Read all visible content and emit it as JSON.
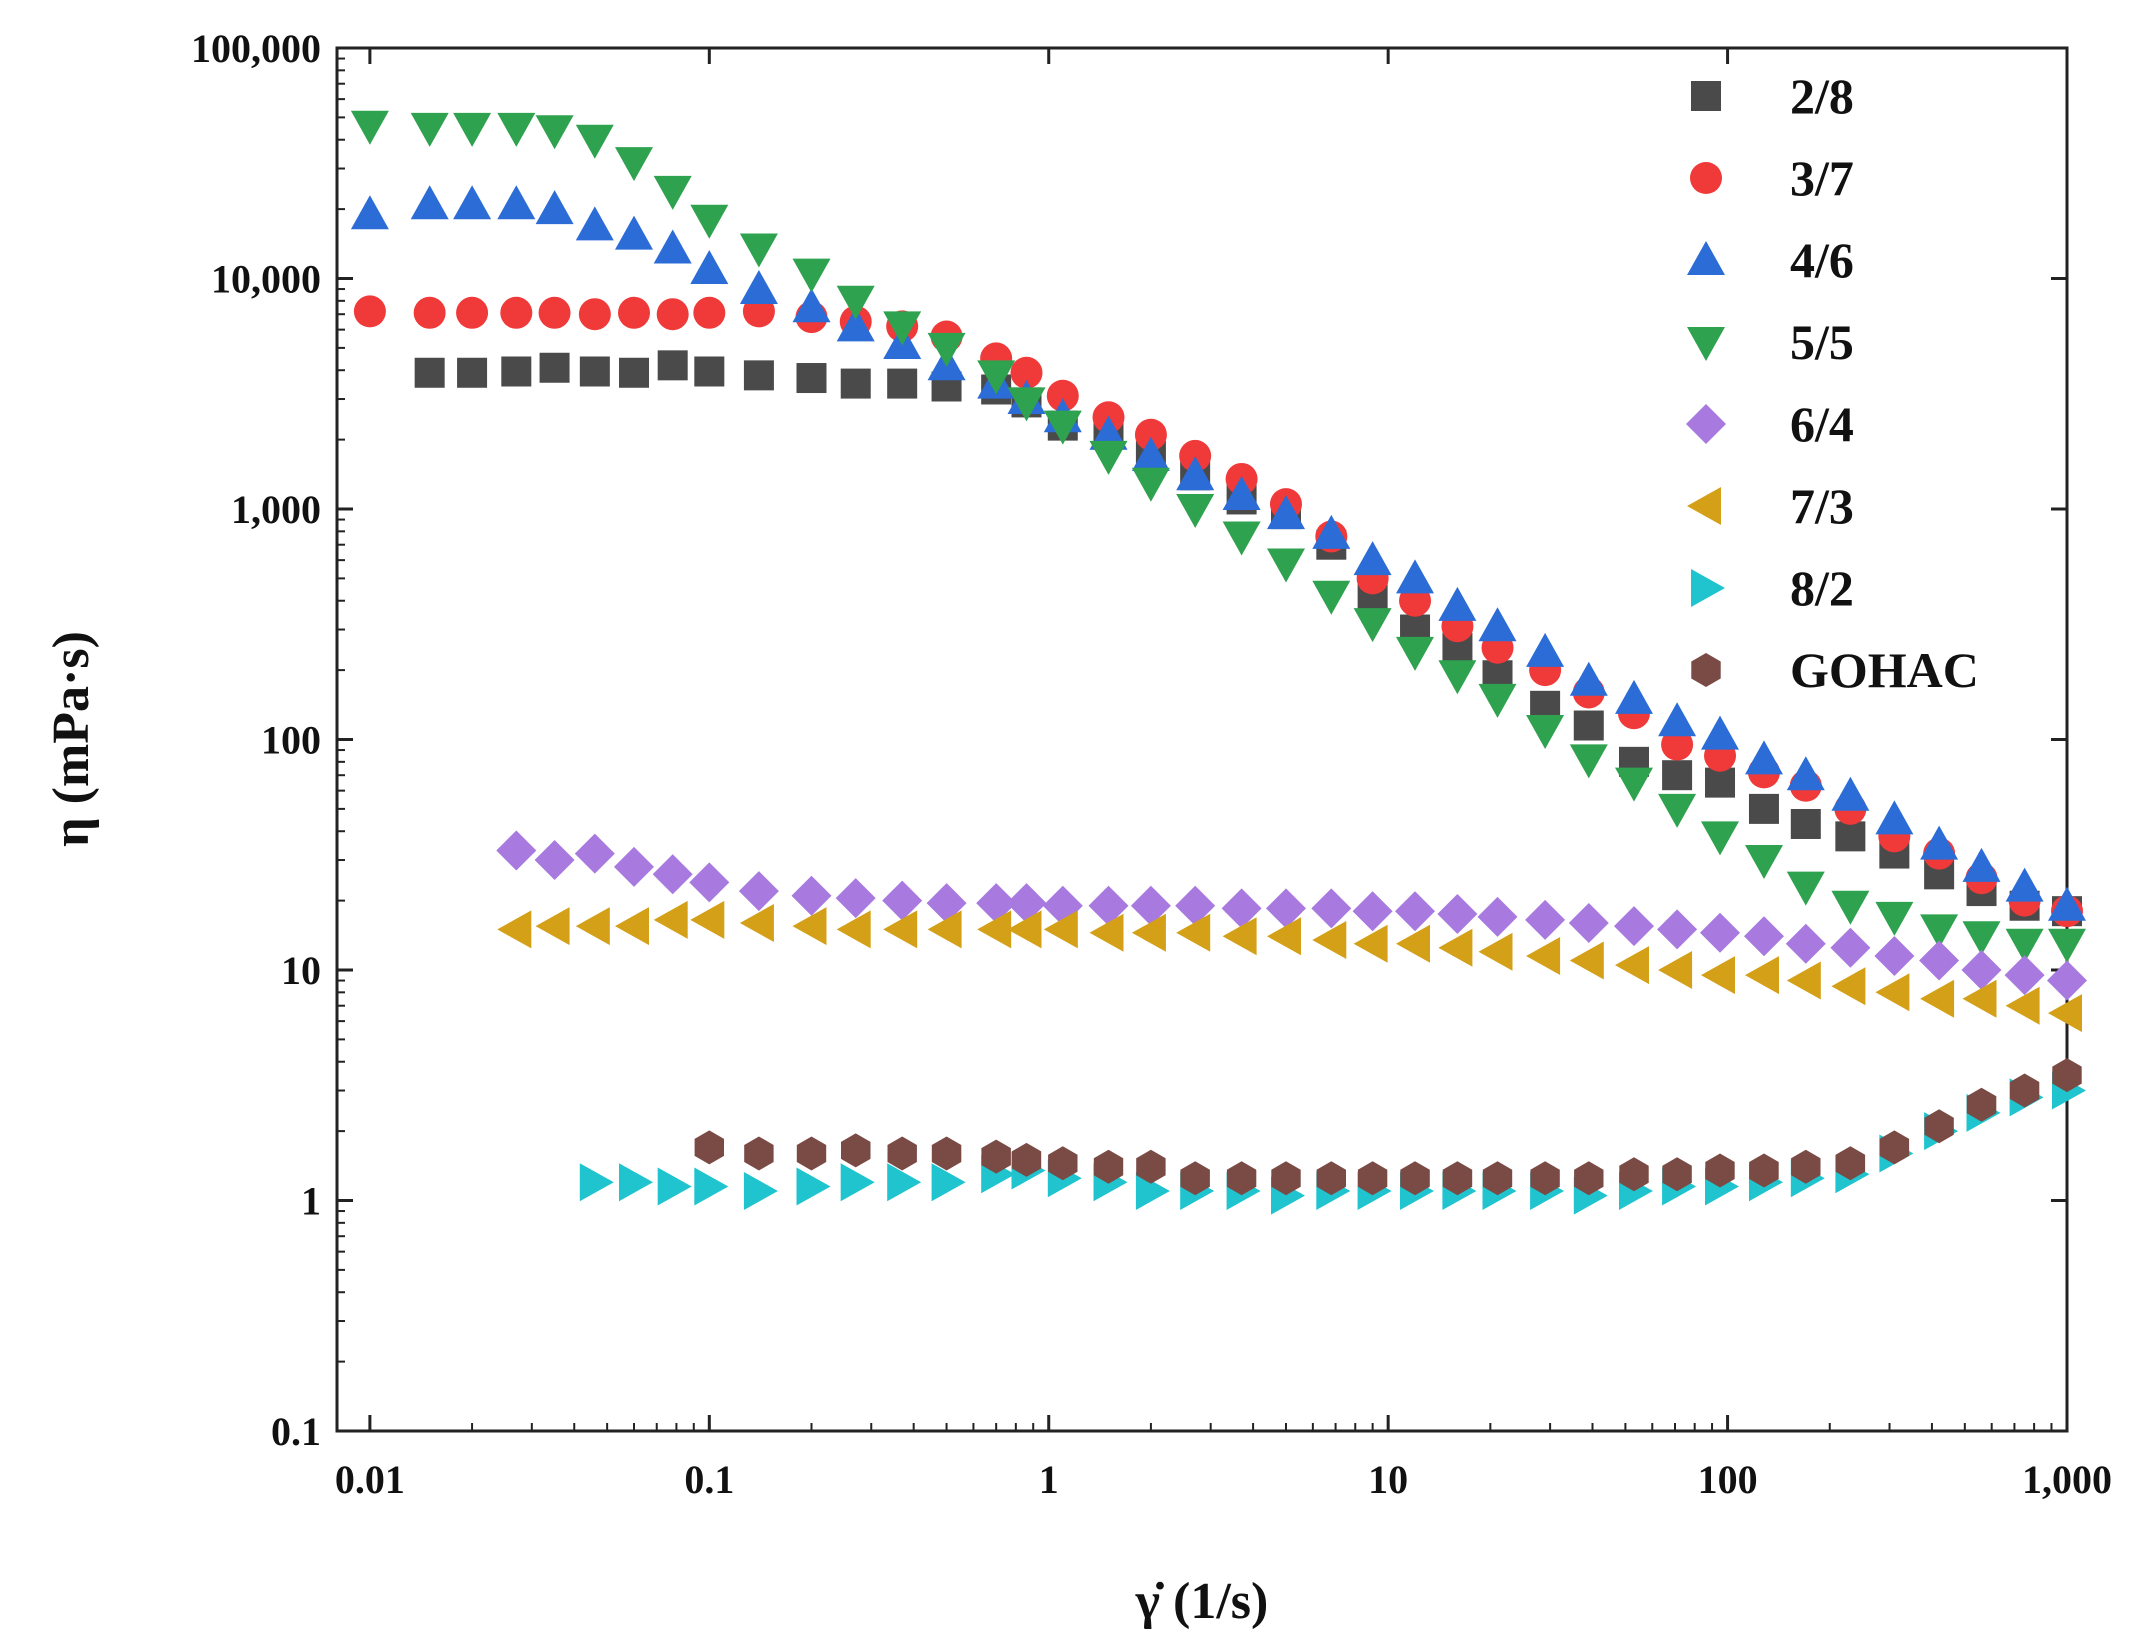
{
  "chart_data": {
    "type": "scatter",
    "xscale": "log",
    "yscale": "log",
    "xlim": [
      0.008,
      1000
    ],
    "ylim": [
      0.1,
      100000
    ],
    "xlabel": "γ̇ (1/s)",
    "ylabel": "η (mPa·s)",
    "xticks": [
      0.01,
      0.1,
      1,
      10,
      100,
      1000
    ],
    "xtick_labels": [
      "0.01",
      "0.1",
      "1",
      "10",
      "100",
      "1,000"
    ],
    "yticks": [
      0.1,
      1,
      10,
      100,
      1000,
      10000,
      100000
    ],
    "ytick_labels": [
      "0.1",
      "1",
      "10",
      "100",
      "1,000",
      "10,000",
      "100,000"
    ],
    "legend_position": "top-right",
    "grid": false,
    "series": [
      {
        "name": "2/8",
        "marker": "square",
        "color": "#4a4a4a",
        "x": [
          0.015,
          0.02,
          0.027,
          0.035,
          0.046,
          0.06,
          0.078,
          0.1,
          0.14,
          0.2,
          0.27,
          0.37,
          0.5,
          0.7,
          0.86,
          1.1,
          1.5,
          2,
          2.7,
          3.7,
          5,
          6.8,
          9,
          12,
          16,
          21,
          29,
          39,
          53,
          71,
          95,
          128,
          170,
          230,
          310,
          420,
          560,
          750,
          1000
        ],
        "y": [
          3900,
          3900,
          3950,
          4100,
          3950,
          3900,
          4200,
          3950,
          3800,
          3700,
          3500,
          3500,
          3400,
          3300,
          2900,
          2300,
          2100,
          1700,
          1400,
          1100,
          950,
          700,
          430,
          300,
          250,
          190,
          140,
          115,
          80,
          70,
          65,
          50,
          43,
          38,
          32,
          26,
          22,
          19,
          18
        ]
      },
      {
        "name": "3/7",
        "marker": "circle",
        "color": "#f03a3a",
        "x": [
          0.01,
          0.015,
          0.02,
          0.027,
          0.035,
          0.046,
          0.06,
          0.078,
          0.1,
          0.14,
          0.2,
          0.27,
          0.37,
          0.5,
          0.7,
          0.86,
          1.1,
          1.5,
          2,
          2.7,
          3.7,
          5,
          6.8,
          9,
          12,
          16,
          21,
          29,
          39,
          53,
          71,
          95,
          128,
          170,
          230,
          310,
          420,
          560,
          750,
          1000
        ],
        "y": [
          7200,
          7100,
          7100,
          7100,
          7100,
          7000,
          7100,
          7000,
          7100,
          7200,
          6800,
          6500,
          6200,
          5600,
          4500,
          3900,
          3100,
          2500,
          2100,
          1700,
          1350,
          1050,
          760,
          500,
          400,
          310,
          250,
          200,
          160,
          130,
          95,
          85,
          72,
          63,
          50,
          38,
          32,
          25,
          20,
          18
        ]
      },
      {
        "name": "4/6",
        "marker": "triangle-up",
        "color": "#2b6cd6",
        "x": [
          0.01,
          0.015,
          0.02,
          0.027,
          0.035,
          0.046,
          0.06,
          0.078,
          0.1,
          0.14,
          0.2,
          0.27,
          0.37,
          0.5,
          0.7,
          0.86,
          1.1,
          1.5,
          2,
          2.7,
          3.7,
          5,
          6.8,
          9,
          12,
          16,
          21,
          29,
          39,
          53,
          71,
          95,
          128,
          170,
          230,
          310,
          420,
          560,
          750,
          1000
        ],
        "y": [
          19000,
          21000,
          21000,
          21000,
          20000,
          17000,
          15500,
          13500,
          11000,
          9000,
          7500,
          6200,
          5200,
          4200,
          3500,
          3000,
          2500,
          2100,
          1700,
          1400,
          1150,
          950,
          780,
          600,
          500,
          380,
          310,
          240,
          180,
          150,
          120,
          105,
          82,
          70,
          57,
          45,
          35,
          28,
          23,
          19
        ]
      },
      {
        "name": "5/5",
        "marker": "triangle-down",
        "color": "#2fa24f",
        "x": [
          0.01,
          0.015,
          0.02,
          0.027,
          0.035,
          0.046,
          0.06,
          0.078,
          0.1,
          0.14,
          0.2,
          0.27,
          0.37,
          0.5,
          0.7,
          0.86,
          1.1,
          1.5,
          2,
          2.7,
          3.7,
          5,
          6.8,
          9,
          12,
          16,
          21,
          29,
          39,
          53,
          71,
          95,
          128,
          170,
          230,
          310,
          420,
          560,
          750,
          1000
        ],
        "y": [
          46000,
          45000,
          45000,
          45000,
          44000,
          40000,
          32000,
          24000,
          18000,
          13500,
          10500,
          8000,
          6200,
          5000,
          3800,
          2900,
          2300,
          1700,
          1300,
          1000,
          760,
          580,
          420,
          320,
          240,
          190,
          150,
          110,
          82,
          65,
          50,
          38,
          30,
          23,
          19,
          17,
          15,
          14,
          13,
          13
        ]
      },
      {
        "name": "6/4",
        "marker": "diamond",
        "color": "#a87ae0",
        "x": [
          0.027,
          0.035,
          0.046,
          0.06,
          0.078,
          0.1,
          0.14,
          0.2,
          0.27,
          0.37,
          0.5,
          0.7,
          0.86,
          1.1,
          1.5,
          2,
          2.7,
          3.7,
          5,
          6.8,
          9,
          12,
          16,
          21,
          29,
          39,
          53,
          71,
          95,
          128,
          170,
          230,
          310,
          420,
          560,
          750,
          1000
        ],
        "y": [
          33,
          30,
          32,
          28,
          26,
          24,
          22,
          21,
          20.5,
          20,
          19.5,
          19.5,
          19.5,
          19,
          19,
          19,
          19,
          18.5,
          18.5,
          18.5,
          18,
          18,
          17.5,
          17,
          16.5,
          16,
          15.5,
          15,
          14.5,
          14,
          13,
          12.5,
          11.5,
          11,
          10,
          9.5,
          9
        ]
      },
      {
        "name": "7/3",
        "marker": "triangle-left",
        "color": "#d4a017",
        "x": [
          0.027,
          0.035,
          0.046,
          0.06,
          0.078,
          0.1,
          0.14,
          0.2,
          0.27,
          0.37,
          0.5,
          0.7,
          0.86,
          1.1,
          1.5,
          2,
          2.7,
          3.7,
          5,
          6.8,
          9,
          12,
          16,
          21,
          29,
          39,
          53,
          71,
          95,
          128,
          170,
          230,
          310,
          420,
          560,
          750,
          1000
        ],
        "y": [
          15,
          15.5,
          15.5,
          15.5,
          16.5,
          16.5,
          16,
          15.5,
          15,
          15,
          15,
          15,
          15,
          15,
          14.5,
          14.5,
          14.5,
          14,
          14,
          13.5,
          13,
          13,
          12.5,
          12,
          11.5,
          11,
          10.5,
          10,
          9.5,
          9.5,
          9,
          8.5,
          8,
          7.5,
          7.5,
          7,
          6.5
        ]
      },
      {
        "name": "8/2",
        "marker": "triangle-right",
        "color": "#1fc4cf",
        "x": [
          0.046,
          0.06,
          0.078,
          0.1,
          0.14,
          0.2,
          0.27,
          0.37,
          0.5,
          0.7,
          0.86,
          1.1,
          1.5,
          2,
          2.7,
          3.7,
          5,
          6.8,
          9,
          12,
          16,
          21,
          29,
          39,
          53,
          71,
          95,
          128,
          170,
          230,
          310,
          420,
          560,
          750,
          1000
        ],
        "y": [
          1.2,
          1.2,
          1.15,
          1.15,
          1.1,
          1.15,
          1.2,
          1.2,
          1.2,
          1.3,
          1.35,
          1.25,
          1.2,
          1.1,
          1.1,
          1.1,
          1.05,
          1.1,
          1.1,
          1.1,
          1.1,
          1.1,
          1.1,
          1.05,
          1.1,
          1.15,
          1.15,
          1.2,
          1.25,
          1.3,
          1.6,
          2,
          2.4,
          2.8,
          3
        ]
      },
      {
        "name": "GOHAC",
        "marker": "hexagon",
        "color": "#7a4a45",
        "x": [
          0.1,
          0.14,
          0.2,
          0.27,
          0.37,
          0.5,
          0.7,
          0.86,
          1.1,
          1.5,
          2,
          2.7,
          3.7,
          5,
          6.8,
          9,
          12,
          16,
          21,
          29,
          39,
          53,
          71,
          95,
          128,
          170,
          230,
          310,
          420,
          560,
          750,
          1000
        ],
        "y": [
          1.7,
          1.6,
          1.6,
          1.65,
          1.6,
          1.6,
          1.55,
          1.5,
          1.45,
          1.4,
          1.4,
          1.25,
          1.25,
          1.25,
          1.25,
          1.25,
          1.25,
          1.25,
          1.25,
          1.25,
          1.25,
          1.3,
          1.3,
          1.35,
          1.35,
          1.4,
          1.45,
          1.7,
          2.1,
          2.6,
          3,
          3.5
        ]
      }
    ]
  }
}
